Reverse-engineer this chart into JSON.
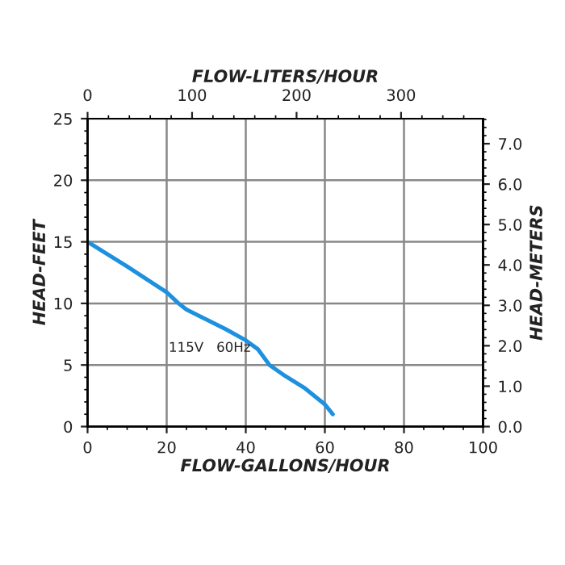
{
  "chart_data": {
    "type": "line",
    "xlabel": "FLOW-GALLONS/HOUR",
    "x2label": "FLOW-LITERS/HOUR",
    "ylabel": "HEAD-FEET",
    "y2label": "HEAD-METERS",
    "x": [
      0,
      10,
      20,
      23,
      25,
      30,
      35,
      40,
      43,
      46,
      50,
      55,
      60,
      62
    ],
    "series": [
      {
        "color": "#1e90e0",
        "values": [
          15,
          13,
          10.9,
          10,
          9.5,
          8.7,
          7.9,
          7,
          6.3,
          5,
          4.1,
          3.1,
          1.8,
          1
        ]
      }
    ],
    "xlim": [
      0,
      100
    ],
    "xticks": [
      0,
      20,
      40,
      60,
      80,
      100
    ],
    "x2lim": [
      0,
      378.5
    ],
    "x2ticks": [
      0,
      100,
      200,
      300
    ],
    "ylim": [
      0,
      25
    ],
    "yticks": [
      0,
      5,
      10,
      15,
      20,
      25
    ],
    "y2lim": [
      0,
      7.62
    ],
    "y2ticks": [
      {
        "value": 0,
        "label": "0.0"
      },
      {
        "value": 1,
        "label": "1.0"
      },
      {
        "value": 2,
        "label": "2.0"
      },
      {
        "value": 3,
        "label": "3.0"
      },
      {
        "value": 4,
        "label": "4.0"
      },
      {
        "value": 5,
        "label": "5.0"
      },
      {
        "value": 6,
        "label": "6.0"
      },
      {
        "value": 7,
        "label": "7.0"
      }
    ],
    "annotations": [
      "115V   60Hz"
    ],
    "grid": true,
    "line_style": "solid",
    "marker": "none"
  }
}
